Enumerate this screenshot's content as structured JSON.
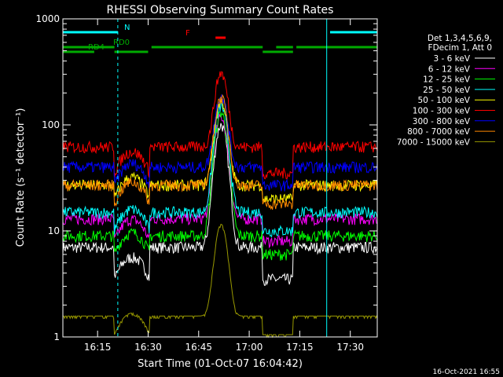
{
  "chart_data": {
    "type": "line",
    "title": "RHESSI Observing Summary Count Rates",
    "xlabel": "Start Time (01-Oct-07 16:04:42)",
    "ylabel": "Count Rate (s⁻¹ detector⁻¹)",
    "yscale": "log",
    "ylim": [
      1,
      1000
    ],
    "xlim": [
      "16:04:42",
      "16:40:00"
    ],
    "x_ticks": [
      "16:15",
      "16:30",
      "16:45",
      "17:00",
      "17:15",
      "17:30"
    ],
    "y_ticks": [
      "1",
      "10",
      "100",
      "1000"
    ],
    "legend_header": [
      "Det 1,3,4,5,6,9,",
      "FDecim 1, Att 0"
    ],
    "legend_position": "right",
    "series": [
      {
        "name": "3 - 6 keV",
        "color": "#ffffff",
        "base": 7,
        "flare_peak": 100,
        "eclipse": 3.5
      },
      {
        "name": "6 - 12 keV",
        "color": "#ff00ff",
        "base": 13,
        "flare_peak": 120,
        "eclipse": 8
      },
      {
        "name": "12 - 25 keV",
        "color": "#00ff00",
        "base": 9,
        "flare_peak": 130,
        "eclipse": 6
      },
      {
        "name": "25 - 50 keV",
        "color": "#00ffff",
        "base": 15,
        "flare_peak": 150,
        "eclipse": 10
      },
      {
        "name": "50 - 100 keV",
        "color": "#ffff00",
        "base": 27,
        "flare_peak": 170,
        "eclipse": 20
      },
      {
        "name": "100 - 300 keV",
        "color": "#ff0000",
        "base": 62,
        "flare_peak": 310,
        "eclipse": 35
      },
      {
        "name": "300 - 800 keV",
        "color": "#0000ff",
        "base": 40,
        "flare_peak": 190,
        "eclipse": 27
      },
      {
        "name": "800 - 7000 keV",
        "color": "#ff8800",
        "base": 27,
        "flare_peak": 180,
        "eclipse": 18
      },
      {
        "name": "7000 - 15000 keV",
        "color": "#999900",
        "base": 1.5,
        "flare_peak": 11,
        "eclipse": 1
      }
    ],
    "flags": [
      {
        "label": "N",
        "color": "#00ffff",
        "segments": [
          [
            "16:04:42",
            "16:21:00"
          ],
          [
            "17:24:00",
            "17:38:00"
          ]
        ]
      },
      {
        "label": "F",
        "color": "#ff0000",
        "segments": [
          [
            "16:50:00",
            "16:53:00"
          ]
        ]
      },
      {
        "label": "RD0",
        "color": "#00aa00",
        "segments": [
          [
            "16:04:42",
            "16:20:00"
          ],
          [
            "16:31:00",
            "17:04:00"
          ],
          [
            "17:08:00",
            "17:13:00"
          ],
          [
            "17:14:00",
            "17:38:00"
          ]
        ]
      },
      {
        "label": "RD4",
        "color": "#00aa00",
        "segments": [
          [
            "16:04:42",
            "16:14:00"
          ],
          [
            "16:20:00",
            "16:30:00"
          ],
          [
            "17:04:00",
            "17:13:00"
          ]
        ]
      }
    ],
    "markers": {
      "solid_cyan": [
        "16:04:42",
        "17:23:00"
      ],
      "dashed_cyan": [
        "16:21:00",
        "17:38:00"
      ]
    },
    "timestamp": "16-Oct-2021 16:55"
  }
}
